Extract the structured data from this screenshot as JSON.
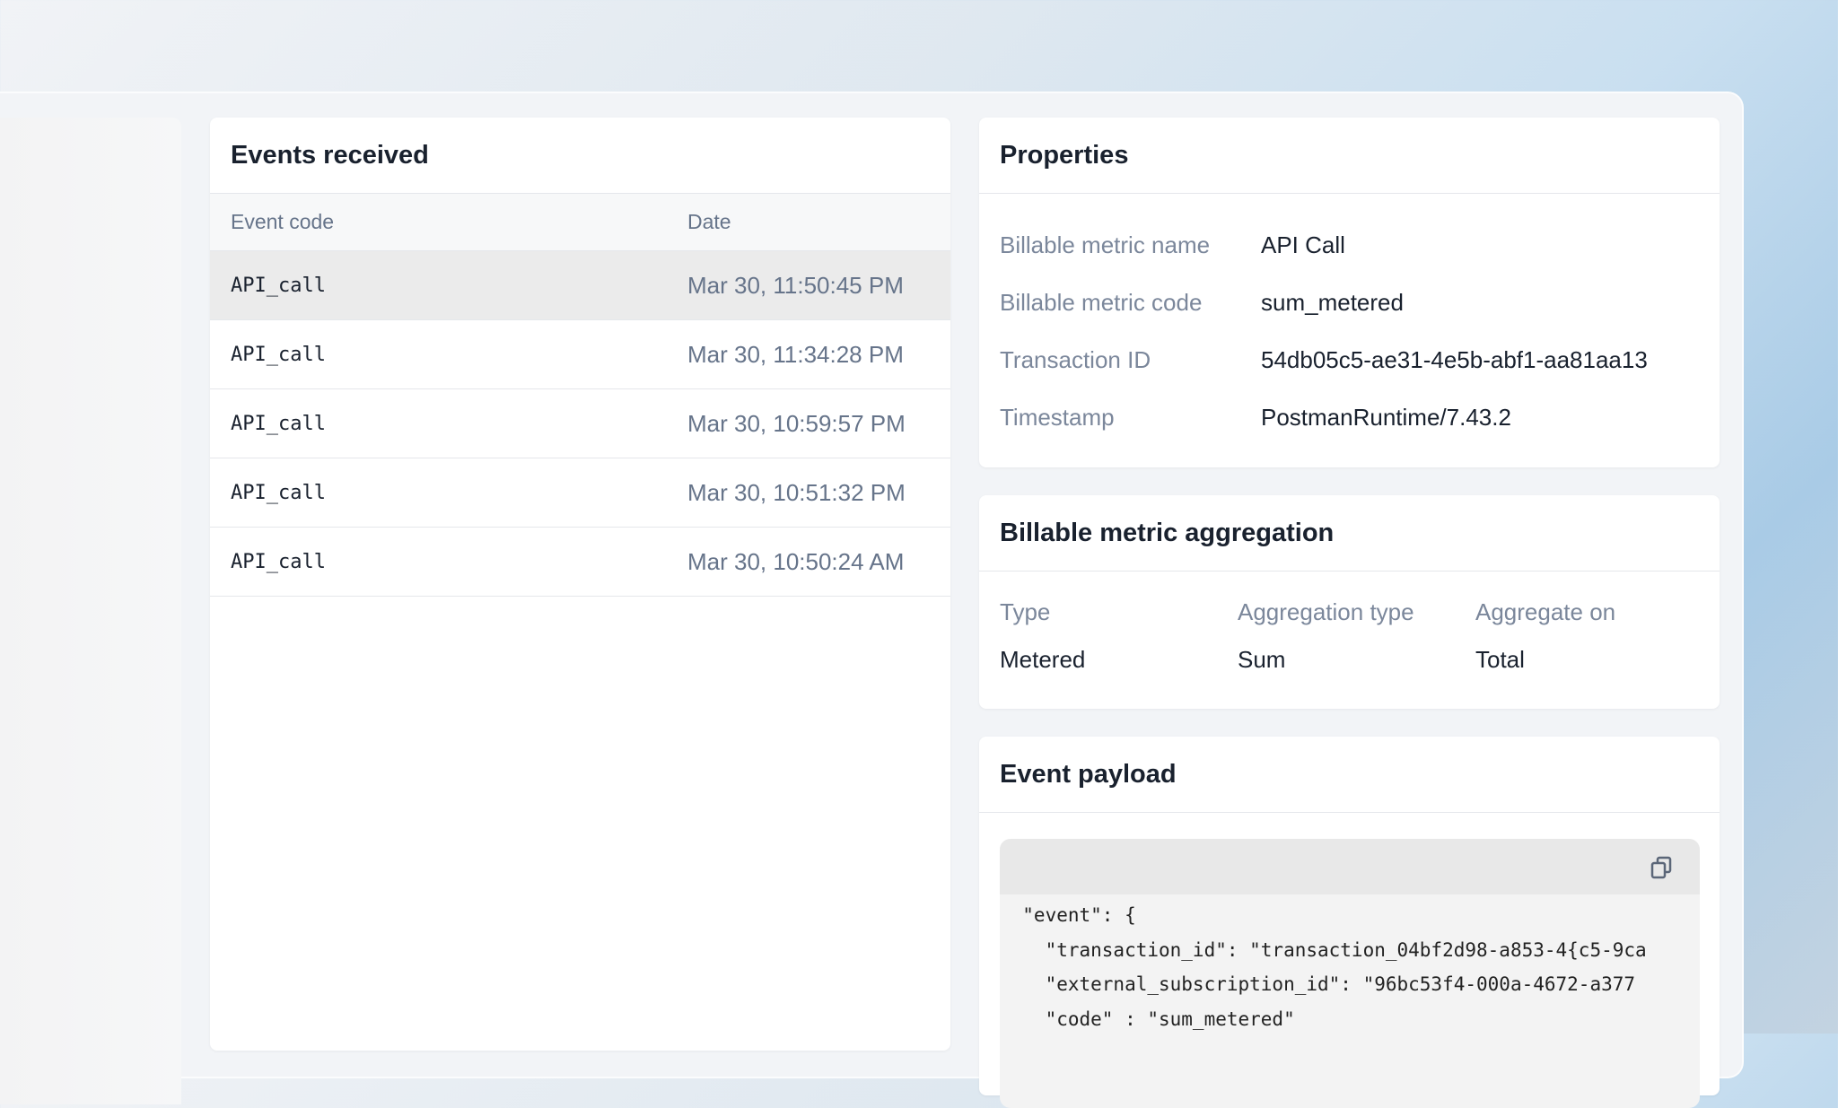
{
  "events": {
    "title": "Events received",
    "columns": [
      "Event code",
      "Date"
    ],
    "rows": [
      {
        "code": "API_call",
        "date": "Mar 30, 11:50:45 PM",
        "selected": true
      },
      {
        "code": "API_call",
        "date": "Mar 30, 11:34:28 PM"
      },
      {
        "code": "API_call",
        "date": "Mar 30, 10:59:57 PM"
      },
      {
        "code": "API_call",
        "date": "Mar 30, 10:51:32 PM"
      },
      {
        "code": "API_call",
        "date": "Mar 30, 10:50:24 AM"
      }
    ]
  },
  "properties": {
    "title": "Properties",
    "items": [
      {
        "label": "Billable metric name",
        "value": "API Call"
      },
      {
        "label": "Billable metric code",
        "value": "sum_metered"
      },
      {
        "label": "Transaction ID",
        "value": "54db05c5-ae31-4e5b-abf1-aa81aa13"
      },
      {
        "label": "Timestamp",
        "value": "PostmanRuntime/7.43.2"
      }
    ]
  },
  "aggregation": {
    "title": "Billable metric aggregation",
    "headers": [
      "Type",
      "Aggregation type",
      "Aggregate on"
    ],
    "values": [
      "Metered",
      "Sum",
      "Total"
    ]
  },
  "payload": {
    "title": "Event payload",
    "copy_icon": "copy-icon",
    "lines": [
      "  \"event\": {",
      "    \"transaction_id\": \"transaction_04bf2d98-a853-4{c5-9ca",
      "    \"external_subscription_id\": \"96bc53f4-000a-4672-a377",
      "    \"code\" : \"sum_metered\""
    ]
  }
}
